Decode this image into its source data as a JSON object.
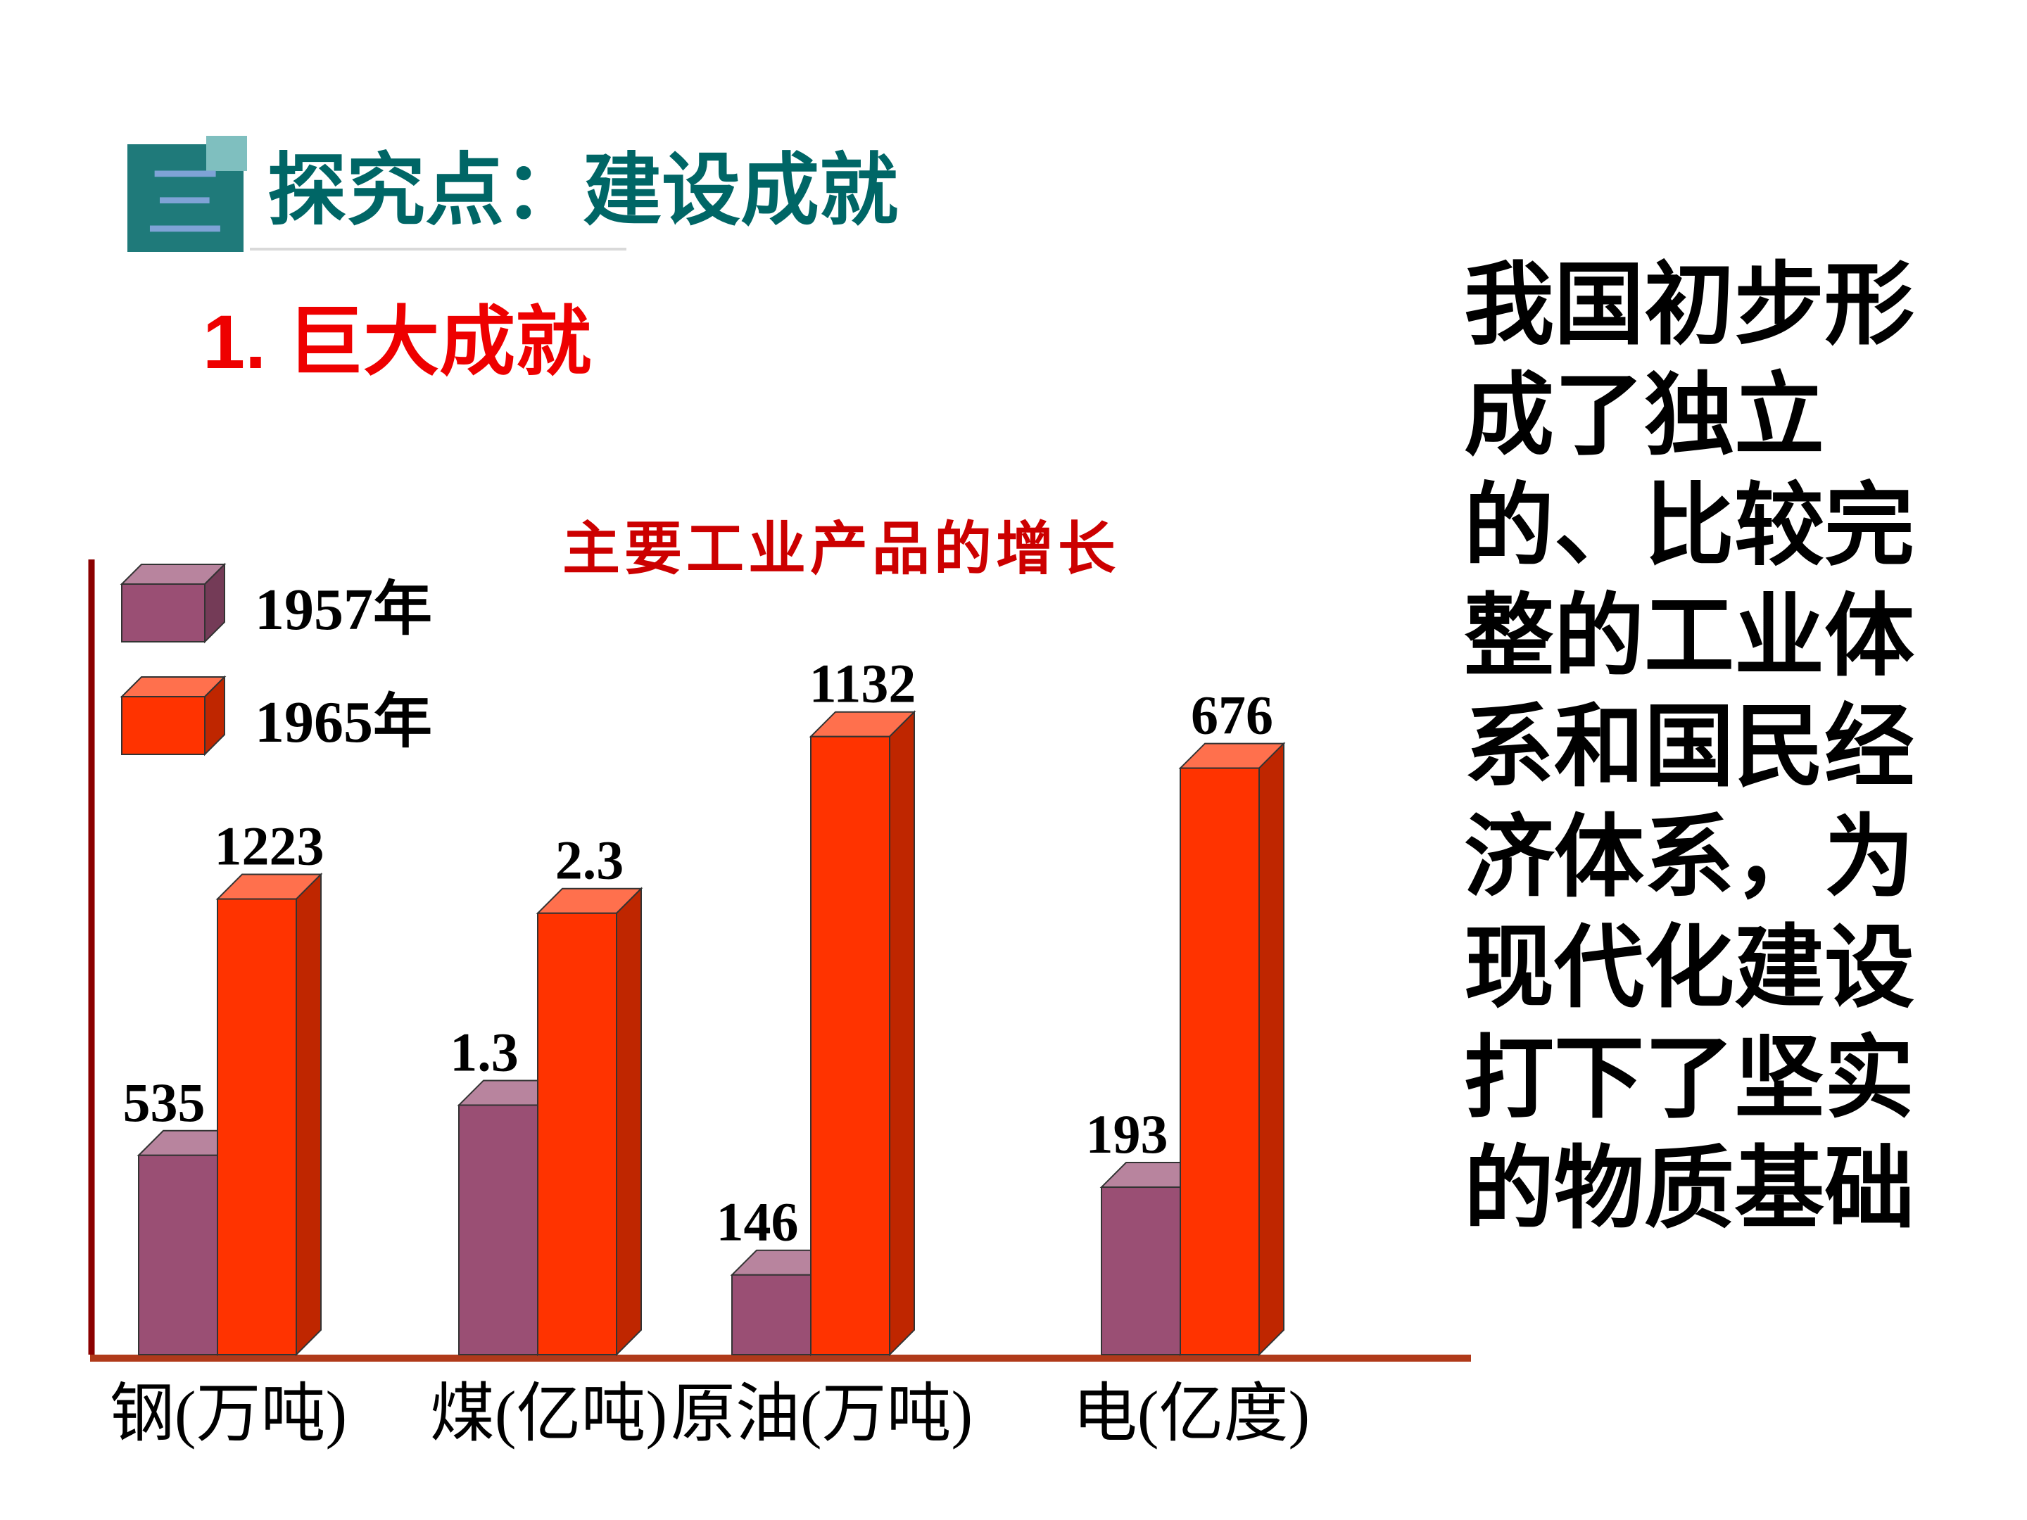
{
  "header": {
    "icon_glyph": "三",
    "title": "探究点：建设成就"
  },
  "subheading": "1. 巨大成就",
  "side_text": "我国初步形成了独立的、比较完整的工业体系和国民经济体系，为现代化建设打下了坚实的物质基础",
  "colors": {
    "header_teal": "#1f7a7a",
    "header_accent": "#7fbfbf",
    "title_teal": "#006666",
    "subheading_red": "#ee0000",
    "chart_title_red": "#cc0000",
    "series_1957": "#9a4f74",
    "series_1965": "#ff3300",
    "axis": "#b03a1a",
    "left_line": "#8b0000"
  },
  "chart_data": {
    "type": "bar",
    "title": "主要工业产品的增长",
    "categories": [
      "钢(万吨)",
      "煤(亿吨)",
      "原油(万吨)",
      "电(亿度)"
    ],
    "series": [
      {
        "name": "1957年",
        "values": [
          535,
          1.3,
          146,
          193
        ],
        "labels": [
          "535",
          "1.3",
          "146",
          "193"
        ]
      },
      {
        "name": "1965年",
        "values": [
          1223,
          2.3,
          1132,
          676
        ],
        "labels": [
          "1223",
          "2.3",
          "1132",
          "676"
        ]
      }
    ],
    "legend": "top-left",
    "grid": false,
    "note": "each category plotted on its own scale"
  }
}
